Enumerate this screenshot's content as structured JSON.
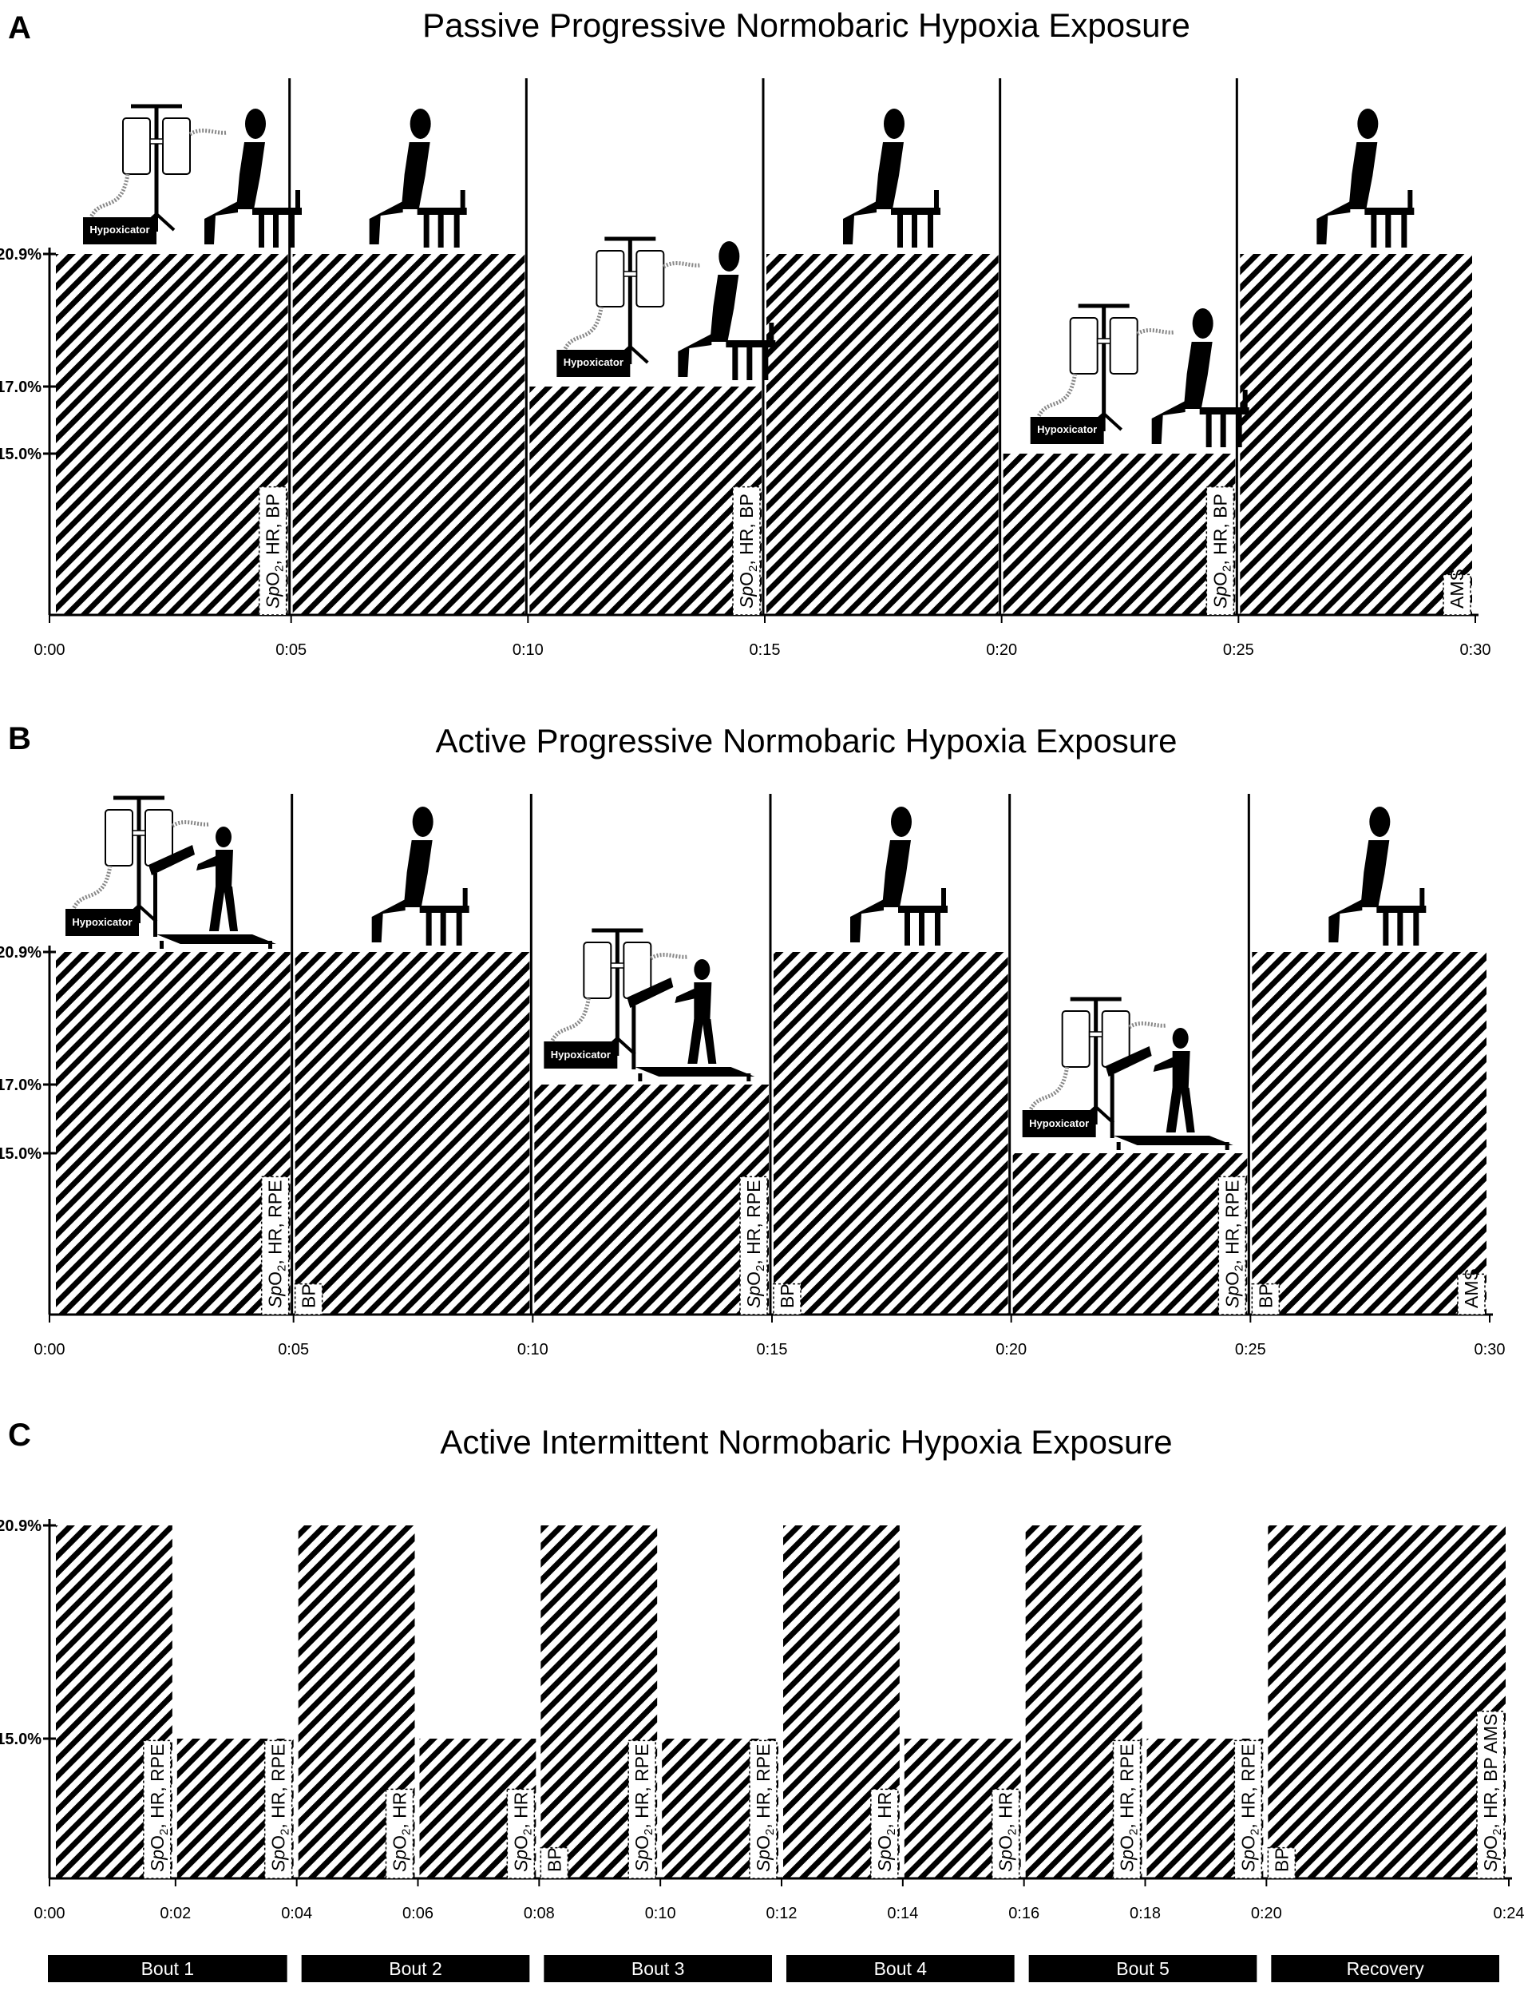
{
  "panels": [
    {
      "letter": "A",
      "title": "Passive Progressive Normobaric Hypoxia Exposure",
      "y_ticks": [
        "20.9%",
        "17.0%",
        "15.0%"
      ],
      "x_ticks": [
        "0:00",
        "0:05",
        "0:10",
        "0:15",
        "0:20",
        "0:25",
        "0:30"
      ],
      "segments": [
        {
          "start_min": 0,
          "end_min": 5,
          "o2_percent": 20.9,
          "figure": "seated-hypoxicator"
        },
        {
          "start_min": 5,
          "end_min": 10,
          "o2_percent": 20.9,
          "figure": "seated"
        },
        {
          "start_min": 10,
          "end_min": 15,
          "o2_percent": 17.0,
          "figure": "seated-hypoxicator"
        },
        {
          "start_min": 15,
          "end_min": 20,
          "o2_percent": 20.9,
          "figure": "seated"
        },
        {
          "start_min": 20,
          "end_min": 25,
          "o2_percent": 15.0,
          "figure": "seated-hypoxicator"
        },
        {
          "start_min": 25,
          "end_min": 30,
          "o2_percent": 20.9,
          "figure": "seated"
        }
      ],
      "measurements": [
        {
          "at_min": 5,
          "side": "before",
          "text": "SpO₂, HR, BP"
        },
        {
          "at_min": 15,
          "side": "before",
          "text": "SpO₂, HR, BP"
        },
        {
          "at_min": 25,
          "side": "before",
          "text": "SpO₂, HR, BP"
        },
        {
          "at_min": 30,
          "side": "before",
          "text": "AMS"
        }
      ]
    },
    {
      "letter": "B",
      "title": "Active Progressive Normobaric Hypoxia Exposure",
      "y_ticks": [
        "20.9%",
        "17.0%",
        "15.0%"
      ],
      "x_ticks": [
        "0:00",
        "0:05",
        "0:10",
        "0:15",
        "0:20",
        "0:25",
        "0:30"
      ],
      "segments": [
        {
          "start_min": 0,
          "end_min": 5,
          "o2_percent": 20.9,
          "figure": "walking-hypoxicator"
        },
        {
          "start_min": 5,
          "end_min": 10,
          "o2_percent": 20.9,
          "figure": "seated"
        },
        {
          "start_min": 10,
          "end_min": 15,
          "o2_percent": 17.0,
          "figure": "walking-hypoxicator"
        },
        {
          "start_min": 15,
          "end_min": 20,
          "o2_percent": 20.9,
          "figure": "seated"
        },
        {
          "start_min": 20,
          "end_min": 25,
          "o2_percent": 15.0,
          "figure": "walking-hypoxicator"
        },
        {
          "start_min": 25,
          "end_min": 30,
          "o2_percent": 20.9,
          "figure": "seated"
        }
      ],
      "measurements": [
        {
          "at_min": 5,
          "side": "before",
          "text": "SpO₂, HR, RPE"
        },
        {
          "at_min": 5,
          "side": "after",
          "text": "BP"
        },
        {
          "at_min": 15,
          "side": "before",
          "text": "SpO₂, HR, RPE"
        },
        {
          "at_min": 15,
          "side": "after",
          "text": "BP"
        },
        {
          "at_min": 25,
          "side": "before",
          "text": "SpO₂, HR, RPE"
        },
        {
          "at_min": 25,
          "side": "after",
          "text": "BP"
        },
        {
          "at_min": 30,
          "side": "before",
          "text": "AMS"
        }
      ]
    },
    {
      "letter": "C",
      "title": "Active Intermittent Normobaric Hypoxia Exposure",
      "y_ticks": [
        "20.9%",
        "15.0%"
      ],
      "x_ticks": [
        "0:00",
        "0:02",
        "0:04",
        "0:06",
        "0:08",
        "0:10",
        "0:12",
        "0:14",
        "0:16",
        "0:18",
        "0:20",
        "0:24"
      ],
      "segments": [
        {
          "start_min": 0,
          "end_min": 2,
          "o2_percent": 20.9
        },
        {
          "start_min": 2,
          "end_min": 4,
          "o2_percent": 15.0
        },
        {
          "start_min": 4,
          "end_min": 6,
          "o2_percent": 20.9
        },
        {
          "start_min": 6,
          "end_min": 8,
          "o2_percent": 15.0
        },
        {
          "start_min": 8,
          "end_min": 10,
          "o2_percent": 20.9
        },
        {
          "start_min": 10,
          "end_min": 12,
          "o2_percent": 15.0
        },
        {
          "start_min": 12,
          "end_min": 14,
          "o2_percent": 20.9
        },
        {
          "start_min": 14,
          "end_min": 16,
          "o2_percent": 15.0
        },
        {
          "start_min": 16,
          "end_min": 18,
          "o2_percent": 20.9
        },
        {
          "start_min": 18,
          "end_min": 20,
          "o2_percent": 15.0
        },
        {
          "start_min": 20,
          "end_min": 24,
          "o2_percent": 20.9
        }
      ],
      "measurements": [
        {
          "at_min": 2,
          "side": "before",
          "text": "SpO₂, HR, RPE"
        },
        {
          "at_min": 4,
          "side": "before",
          "text": "SpO₂, HR, RPE"
        },
        {
          "at_min": 6,
          "side": "before",
          "text": "SpO₂, HR"
        },
        {
          "at_min": 8,
          "side": "before",
          "text": "SpO₂, HR"
        },
        {
          "at_min": 8,
          "side": "after",
          "text": "BP"
        },
        {
          "at_min": 10,
          "side": "before",
          "text": "SpO₂, HR, RPE"
        },
        {
          "at_min": 12,
          "side": "before",
          "text": "SpO₂, HR, RPE"
        },
        {
          "at_min": 14,
          "side": "before",
          "text": "SpO₂, HR"
        },
        {
          "at_min": 16,
          "side": "before",
          "text": "SpO₂, HR"
        },
        {
          "at_min": 18,
          "side": "before",
          "text": "SpO₂, HR, RPE"
        },
        {
          "at_min": 20,
          "side": "before",
          "text": "SpO₂, HR, RPE"
        },
        {
          "at_min": 20,
          "side": "after",
          "text": "BP"
        },
        {
          "at_min": 24,
          "side": "before",
          "text": "SpO₂, HR, BP AMS"
        }
      ],
      "bouts": [
        {
          "label": "Bout 1",
          "start_min": 0,
          "end_min": 4
        },
        {
          "label": "Bout 2",
          "start_min": 4,
          "end_min": 8
        },
        {
          "label": "Bout 3",
          "start_min": 8,
          "end_min": 12
        },
        {
          "label": "Bout 4",
          "start_min": 12,
          "end_min": 16
        },
        {
          "label": "Bout 5",
          "start_min": 16,
          "end_min": 20
        },
        {
          "label": "Recovery",
          "start_min": 20,
          "end_min": 24
        }
      ]
    }
  ],
  "device_label": "Hypoxicator",
  "colors": {
    "ink": "#000000",
    "paper": "#ffffff"
  }
}
